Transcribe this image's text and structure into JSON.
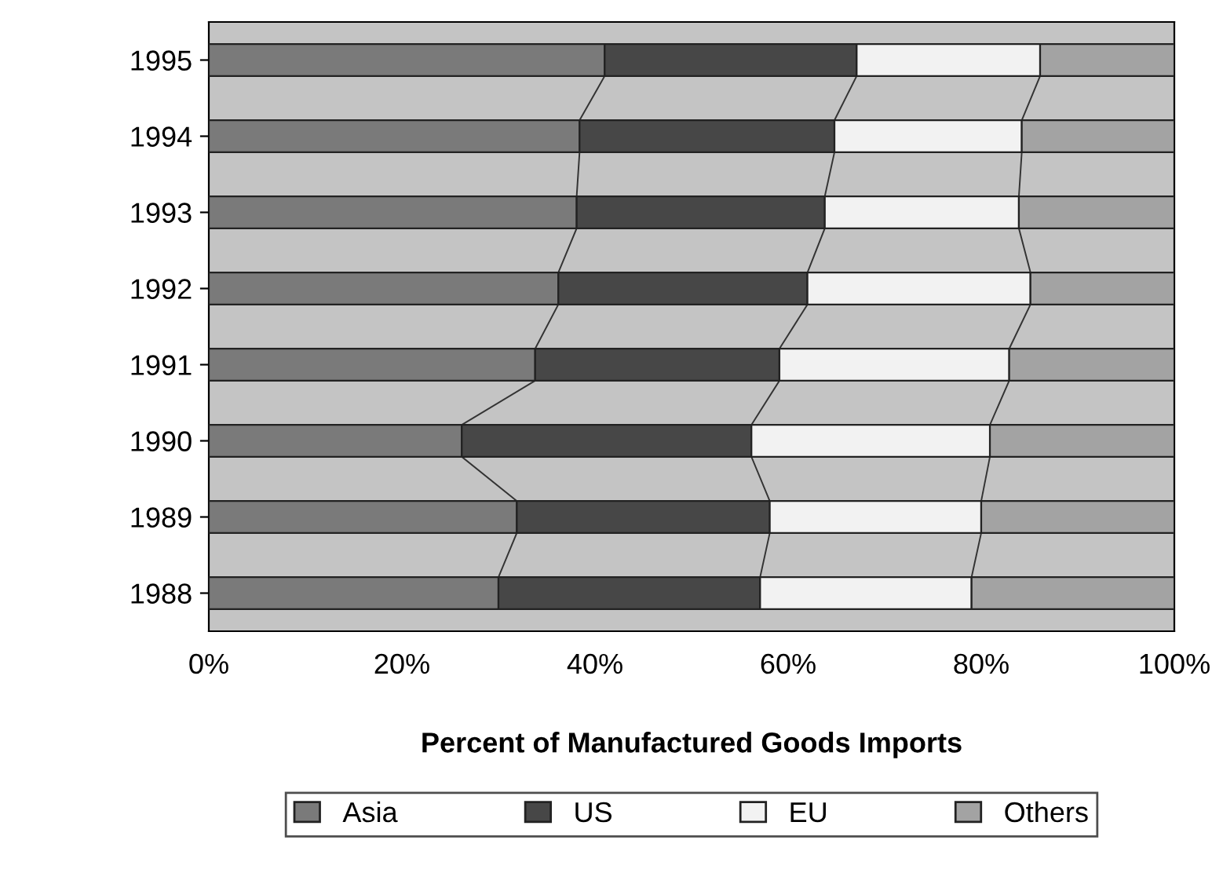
{
  "chart_data": {
    "type": "bar",
    "orientation": "horizontal",
    "stacked": true,
    "categories": [
      "1995",
      "1994",
      "1993",
      "1992",
      "1991",
      "1990",
      "1989",
      "1988"
    ],
    "series": [
      {
        "name": "Asia",
        "color": "#7a7a7a",
        "values": [
          41.0,
          38.4,
          38.1,
          36.2,
          33.8,
          26.2,
          31.9,
          30.0
        ]
      },
      {
        "name": "US",
        "color": "#474747",
        "values": [
          26.1,
          26.4,
          25.7,
          25.8,
          25.3,
          30.0,
          26.2,
          27.1
        ]
      },
      {
        "name": "EU",
        "color": "#f2f2f2",
        "values": [
          19.0,
          19.4,
          20.1,
          23.1,
          23.8,
          24.7,
          21.9,
          21.9
        ]
      },
      {
        "name": "Others",
        "color": "#a3a3a3",
        "values": [
          13.9,
          15.8,
          16.1,
          14.9,
          17.1,
          19.1,
          20.0,
          21.0
        ]
      }
    ],
    "xlim": [
      0,
      100
    ],
    "xticks": [
      {
        "value": 0,
        "label": "0%"
      },
      {
        "value": 20,
        "label": "20%"
      },
      {
        "value": 40,
        "label": "40%"
      },
      {
        "value": 60,
        "label": "60%"
      },
      {
        "value": 80,
        "label": "80%"
      },
      {
        "value": 100,
        "label": "100%"
      }
    ],
    "xlabel": "Percent of Manufactured Goods Imports",
    "legend": "bottom",
    "grid": false
  }
}
